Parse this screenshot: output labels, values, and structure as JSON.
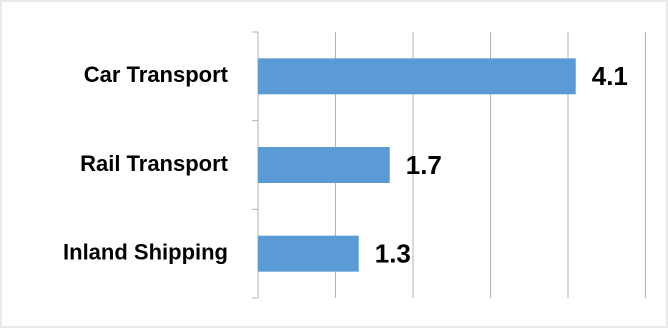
{
  "chart_data": {
    "type": "bar",
    "orientation": "horizontal",
    "categories": [
      "Car Transport",
      "Rail Transport",
      "Inland Shipping"
    ],
    "values": [
      4.1,
      1.7,
      1.3
    ],
    "xlim": [
      0,
      5
    ],
    "x_tick_step": 1,
    "grid": true,
    "legend": "none",
    "colors": {
      "bar": "#5b9bd5",
      "grid": "#b3b3b3",
      "frame": "#d4d4d4",
      "text": "#000000"
    }
  }
}
